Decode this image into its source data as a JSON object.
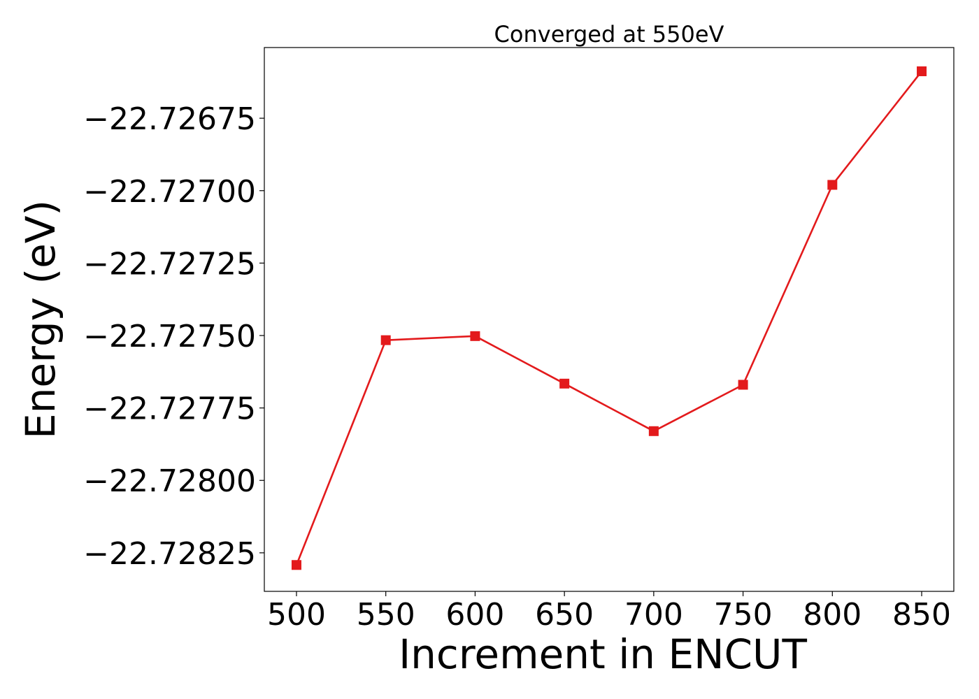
{
  "chart_data": {
    "type": "line",
    "title": "Converged at 550eV",
    "xlabel": "Increment in ENCUT",
    "ylabel": "Energy (eV)",
    "x": [
      500,
      550,
      600,
      650,
      700,
      750,
      800,
      850
    ],
    "series": [
      {
        "values": [
          -22.728292,
          -22.727516,
          -22.727502,
          -22.727666,
          -22.72783,
          -22.72767,
          -22.72698,
          -22.726588
        ],
        "color": "#e31a1c",
        "marker": "square"
      }
    ],
    "xticks": [
      500,
      550,
      600,
      650,
      700,
      750,
      800,
      850
    ],
    "xtick_labels": [
      "500",
      "550",
      "600",
      "650",
      "700",
      "750",
      "800",
      "850"
    ],
    "yticks": [
      -22.72825,
      -22.728,
      -22.72775,
      -22.7275,
      -22.72725,
      -22.727,
      -22.72675
    ],
    "ytick_labels": [
      "−22.72825",
      "−22.72800",
      "−22.72775",
      "−22.72750",
      "−22.72725",
      "−22.72700",
      "−22.72675"
    ],
    "xlim": [
      482,
      868
    ],
    "ylim": [
      -22.728383,
      -22.726506
    ],
    "grid": false,
    "legend": "none"
  }
}
